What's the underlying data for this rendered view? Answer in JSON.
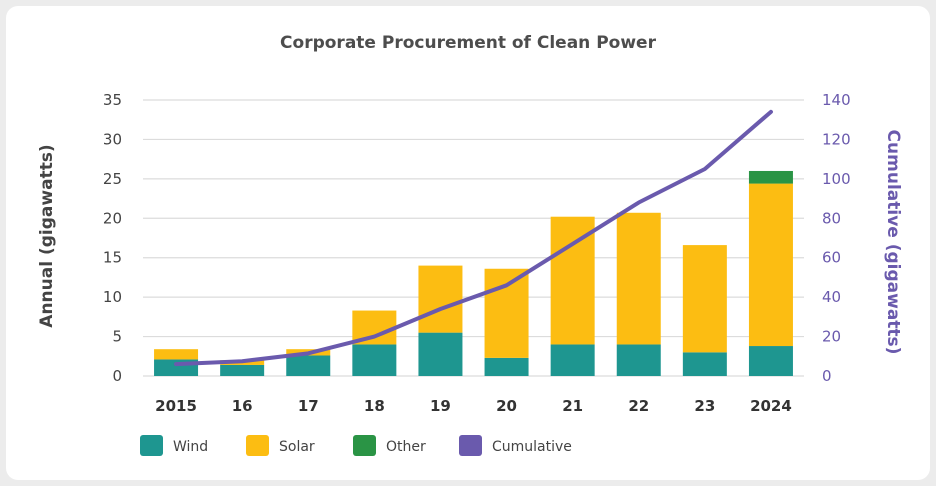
{
  "chart_data": {
    "type": "bar",
    "title": "Corporate Procurement of Clean Power",
    "categories": [
      "2015",
      "16",
      "17",
      "18",
      "19",
      "20",
      "21",
      "22",
      "23",
      "2024"
    ],
    "series": [
      {
        "name": "Wind",
        "values": [
          2.1,
          1.4,
          2.6,
          4.0,
          5.5,
          2.3,
          4.0,
          4.0,
          3.0,
          3.8
        ],
        "color": "#1e9690"
      },
      {
        "name": "Solar",
        "values": [
          1.3,
          0.6,
          0.8,
          4.3,
          8.5,
          11.3,
          16.2,
          16.7,
          13.6,
          20.6
        ],
        "color": "#fcbd12"
      },
      {
        "name": "Other",
        "values": [
          0,
          0,
          0,
          0,
          0,
          0,
          0,
          0,
          0,
          1.6
        ],
        "color": "#2a9445"
      }
    ],
    "cumulative": {
      "name": "Cumulative",
      "values": [
        6,
        7.5,
        11.5,
        20,
        34,
        46,
        67,
        88,
        105,
        134
      ],
      "color": "#6a5aad"
    },
    "ylabel_left": "Annual (gigawatts)",
    "ylabel_right": "Cumulative (gigawatts)",
    "ylim_left": [
      0,
      35
    ],
    "yticks_left": [
      "0",
      "5",
      "10",
      "15",
      "20",
      "25",
      "30",
      "35"
    ],
    "ylim_right": [
      0,
      140
    ],
    "yticks_right": [
      "0",
      "20",
      "40",
      "60",
      "80",
      "100",
      "120",
      "140"
    ],
    "grid": true,
    "legend_position": "bottom-left"
  }
}
